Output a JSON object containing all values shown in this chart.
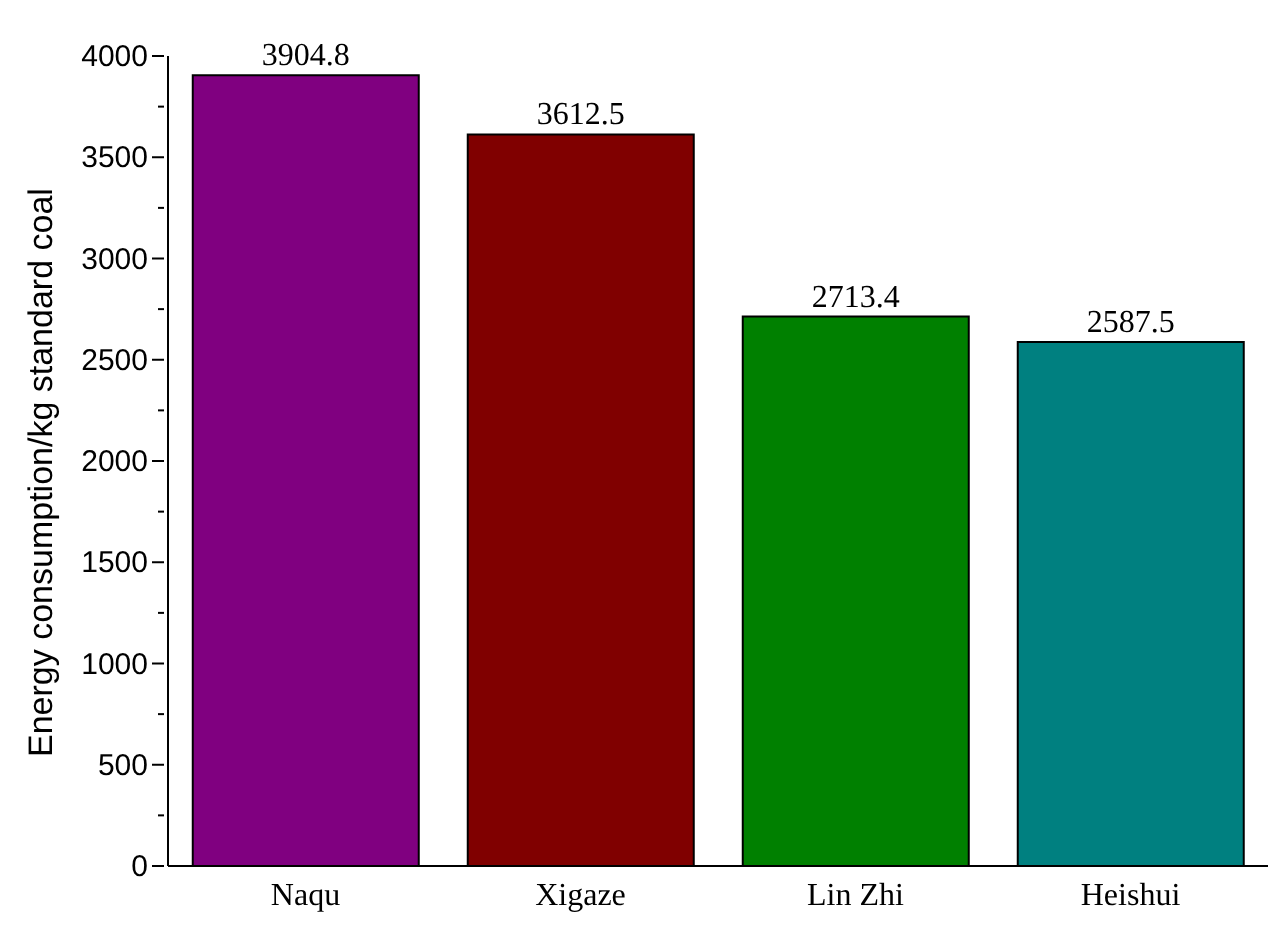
{
  "chart_data": {
    "type": "bar",
    "ylabel": "Energy consumption/kg standard coal",
    "categories": [
      "Naqu",
      "Xigaze",
      "Lin Zhi",
      "Heishui"
    ],
    "values": [
      3904.8,
      3612.5,
      2713.4,
      2587.5
    ],
    "colors": [
      "#800080",
      "#800000",
      "#008000",
      "#008080"
    ],
    "ylim": [
      0,
      4000
    ],
    "yticks": [
      0,
      {
        "value": 250,
        "label": null
      },
      500,
      {
        "value": 750,
        "label": null
      },
      1000,
      {
        "value": 1250,
        "label": null
      },
      1500,
      {
        "value": 1750,
        "label": null
      },
      2000,
      {
        "value": 2250,
        "label": null
      },
      2500,
      {
        "value": 2750,
        "label": null
      },
      3000,
      {
        "value": 3250,
        "label": null
      },
      3500,
      {
        "value": 3750,
        "label": null
      },
      4000
    ],
    "data_labels": true,
    "grid": false
  }
}
